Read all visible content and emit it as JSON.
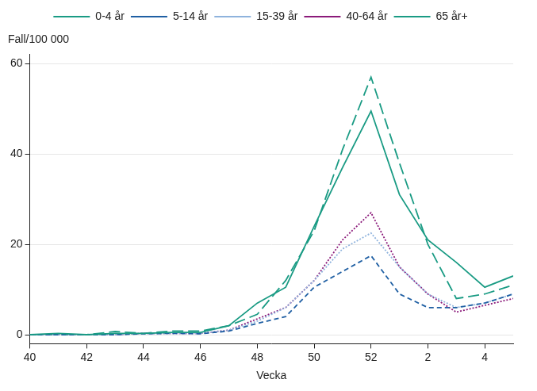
{
  "chart_data": {
    "type": "line",
    "xlabel": "Vecka",
    "ylabel": "Fall/100 000",
    "categories": [
      "40",
      null,
      "42",
      null,
      "44",
      null,
      "46",
      null,
      "48",
      null,
      "50",
      null,
      "52",
      null,
      "2",
      null,
      "4",
      null
    ],
    "ylim": [
      -2,
      62
    ],
    "yticks": [
      0,
      20,
      40,
      60
    ],
    "grid": true,
    "legend": "top",
    "series": [
      {
        "name": "0-4 år",
        "color": "#1a9b84",
        "line_style": "solid",
        "values": [
          0,
          0.3,
          0,
          0.3,
          0.3,
          0.5,
          0.5,
          2,
          7,
          10.5,
          24,
          37,
          49.5,
          31,
          21,
          16,
          10.5,
          13
        ]
      },
      {
        "name": "5-14 år",
        "color": "#1f5fa3",
        "line_style": "dashed",
        "values": [
          0,
          0,
          0,
          0,
          0.2,
          0.3,
          0.2,
          0.8,
          2.5,
          4,
          10.5,
          14,
          17.5,
          9,
          6,
          6,
          7,
          9
        ]
      },
      {
        "name": "15-39 år",
        "color": "#8fb3dd",
        "line_style": "dotted",
        "values": [
          0,
          0,
          0,
          0,
          0.3,
          0.3,
          0.3,
          1,
          3,
          6,
          12,
          19,
          22.5,
          15,
          9,
          6,
          7,
          9
        ]
      },
      {
        "name": "40-64 år",
        "color": "#8b1a7a",
        "line_style": "dotted",
        "values": [
          0,
          0,
          0,
          0,
          0.3,
          0.3,
          0.3,
          1,
          3.5,
          6,
          12,
          21,
          27,
          15,
          9,
          5,
          6.5,
          8
        ]
      },
      {
        "name": "65 år+",
        "color": "#1a9b84",
        "line_style": "longdash",
        "values": [
          0,
          0,
          0,
          0.7,
          0.3,
          0.8,
          0.8,
          2,
          4.5,
          12,
          23,
          41,
          57,
          38,
          20,
          8,
          9,
          11
        ]
      }
    ]
  }
}
